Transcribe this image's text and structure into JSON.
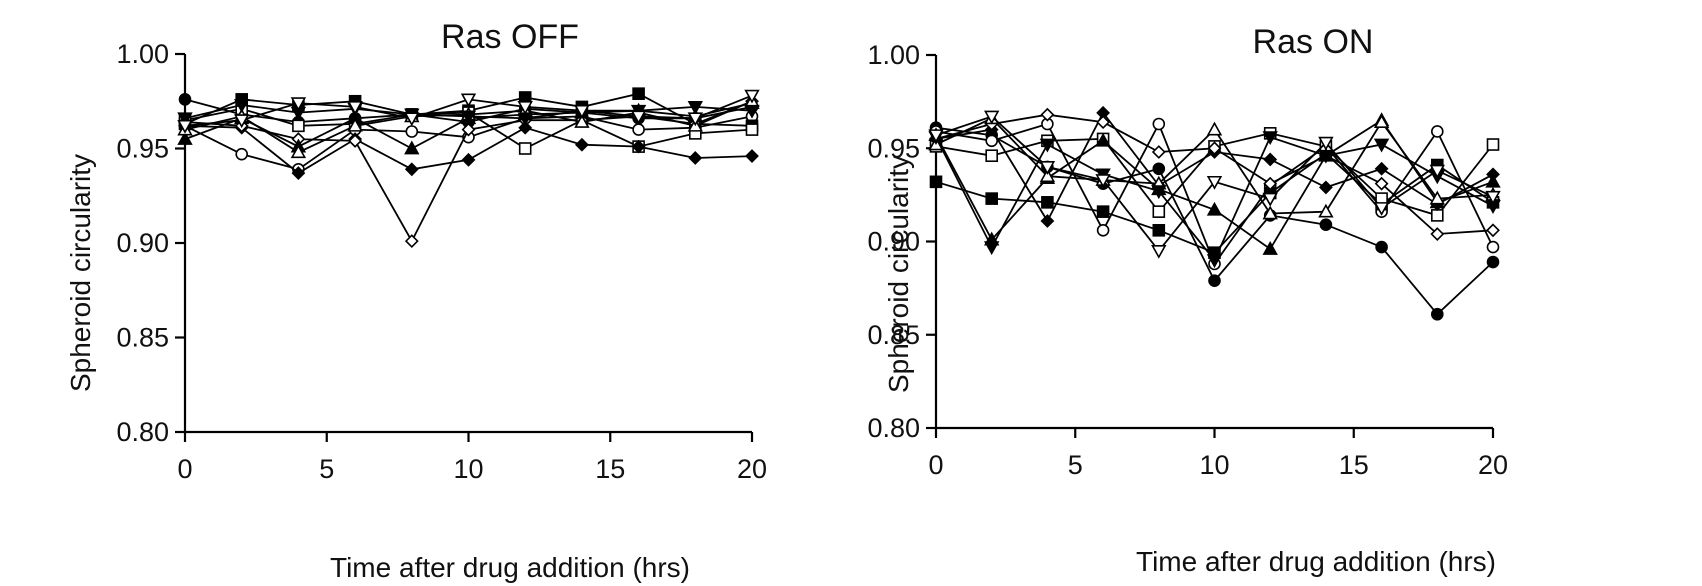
{
  "chart_data": [
    {
      "type": "line",
      "title": "Ras OFF",
      "xlabel": "Time after drug addition (hrs)",
      "ylabel": "Spheroid circularity",
      "xlim": [
        0,
        20
      ],
      "ylim": [
        0.8,
        1.0
      ],
      "xticks": [
        0,
        5,
        10,
        15,
        20
      ],
      "yticks": [
        0.8,
        0.85,
        0.9,
        0.95,
        1.0
      ],
      "xtick_labels": [
        "0",
        "5",
        "10",
        "15",
        "20"
      ],
      "ytick_labels": [
        "0.80",
        "0.85",
        "0.90",
        "0.95",
        "1.00"
      ],
      "x": [
        0,
        2,
        4,
        6,
        8,
        10,
        12,
        14,
        16,
        18,
        20
      ],
      "series": [
        {
          "name": "filled circle",
          "marker": "circle-filled",
          "values": [
            0.976,
            0.968,
            0.964,
            0.966,
            0.968,
            0.964,
            0.971,
            0.969,
            0.966,
            0.966,
            0.972
          ]
        },
        {
          "name": "open circle",
          "marker": "circle-open",
          "values": [
            0.962,
            0.947,
            0.939,
            0.96,
            0.959,
            0.956,
            0.966,
            0.967,
            0.96,
            0.961,
            0.967
          ]
        },
        {
          "name": "filled square",
          "marker": "square-filled",
          "values": [
            0.963,
            0.976,
            0.973,
            0.975,
            0.968,
            0.97,
            0.977,
            0.972,
            0.979,
            0.963,
            0.962
          ]
        },
        {
          "name": "open square",
          "marker": "square-open",
          "values": [
            0.965,
            0.971,
            0.962,
            0.963,
            0.968,
            0.969,
            0.95,
            0.965,
            0.951,
            0.958,
            0.96
          ]
        },
        {
          "name": "filled diamond",
          "marker": "diamond-filled",
          "values": [
            0.962,
            0.961,
            0.937,
            0.955,
            0.939,
            0.944,
            0.961,
            0.952,
            0.951,
            0.945,
            0.946
          ]
        },
        {
          "name": "open diamond",
          "marker": "diamond-open",
          "values": [
            0.964,
            0.962,
            0.955,
            0.954,
            0.901,
            0.96,
            0.965,
            0.965,
            0.967,
            0.963,
            0.975
          ]
        },
        {
          "name": "filled triangle up",
          "marker": "triangle-up-filled",
          "values": [
            0.955,
            0.966,
            0.951,
            0.966,
            0.95,
            0.966,
            0.968,
            0.969,
            0.97,
            0.967,
            0.974
          ]
        },
        {
          "name": "open triangle up",
          "marker": "triangle-up-open",
          "values": [
            0.96,
            0.967,
            0.948,
            0.962,
            0.967,
            0.968,
            0.97,
            0.964,
            0.969,
            0.962,
            0.975
          ]
        },
        {
          "name": "filled triangle down",
          "marker": "triangle-down-filled",
          "values": [
            0.966,
            0.973,
            0.969,
            0.971,
            0.968,
            0.967,
            0.966,
            0.97,
            0.97,
            0.972,
            0.97
          ]
        },
        {
          "name": "open triangle down",
          "marker": "triangle-down-open",
          "values": [
            0.962,
            0.965,
            0.974,
            0.972,
            0.966,
            0.976,
            0.972,
            0.97,
            0.967,
            0.966,
            0.978
          ]
        }
      ]
    },
    {
      "type": "line",
      "title": "Ras ON",
      "xlabel": "Time after drug addition (hrs)",
      "ylabel": "Spheroid circularity",
      "xlim": [
        0,
        20
      ],
      "ylim": [
        0.8,
        1.0
      ],
      "xticks": [
        0,
        5,
        10,
        15,
        20
      ],
      "yticks": [
        0.8,
        0.85,
        0.9,
        0.95,
        1.0
      ],
      "xtick_labels": [
        "0",
        "5",
        "10",
        "15",
        "20"
      ],
      "ytick_labels": [
        "0.80",
        "0.85",
        "0.90",
        "0.95",
        "1.00"
      ],
      "x": [
        0,
        2,
        4,
        6,
        8,
        10,
        12,
        14,
        16,
        18,
        20
      ],
      "series": [
        {
          "name": "filled circle",
          "marker": "circle-filled",
          "values": [
            0.961,
            0.957,
            0.94,
            0.931,
            0.939,
            0.879,
            0.914,
            0.909,
            0.897,
            0.861,
            0.889
          ]
        },
        {
          "name": "open circle",
          "marker": "circle-open",
          "values": [
            0.959,
            0.954,
            0.963,
            0.906,
            0.963,
            0.888,
            0.93,
            0.951,
            0.916,
            0.959,
            0.897
          ]
        },
        {
          "name": "filled square",
          "marker": "square-filled",
          "values": [
            0.932,
            0.923,
            0.921,
            0.916,
            0.906,
            0.894,
            0.926,
            0.947,
            0.92,
            0.941,
            0.921
          ]
        },
        {
          "name": "open square",
          "marker": "square-open",
          "values": [
            0.951,
            0.946,
            0.954,
            0.955,
            0.916,
            0.951,
            0.958,
            0.951,
            0.923,
            0.914,
            0.952
          ]
        },
        {
          "name": "filled diamond",
          "marker": "diamond-filled",
          "values": [
            0.955,
            0.96,
            0.911,
            0.969,
            0.93,
            0.948,
            0.944,
            0.929,
            0.939,
            0.92,
            0.936
          ]
        },
        {
          "name": "open diamond",
          "marker": "diamond-open",
          "values": [
            0.955,
            0.963,
            0.968,
            0.964,
            0.948,
            0.95,
            0.931,
            0.946,
            0.931,
            0.904,
            0.906
          ]
        },
        {
          "name": "filled triangle up",
          "marker": "triangle-up-filled",
          "values": [
            0.957,
            0.901,
            0.934,
            0.954,
            0.928,
            0.917,
            0.896,
            0.946,
            0.965,
            0.921,
            0.932
          ]
        },
        {
          "name": "open triangle up",
          "marker": "triangle-up-open",
          "values": [
            0.952,
            0.966,
            0.935,
            0.933,
            0.931,
            0.96,
            0.915,
            0.916,
            0.964,
            0.923,
            0.925
          ]
        },
        {
          "name": "filled triangle down",
          "marker": "triangle-down-filled",
          "values": [
            0.956,
            0.897,
            0.952,
            0.936,
            0.927,
            0.89,
            0.956,
            0.946,
            0.952,
            0.935,
            0.919
          ]
        },
        {
          "name": "open triangle down",
          "marker": "triangle-down-open",
          "values": [
            0.957,
            0.967,
            0.94,
            0.933,
            0.895,
            0.932,
            0.923,
            0.953,
            0.918,
            0.938,
            0.924
          ]
        }
      ]
    }
  ]
}
